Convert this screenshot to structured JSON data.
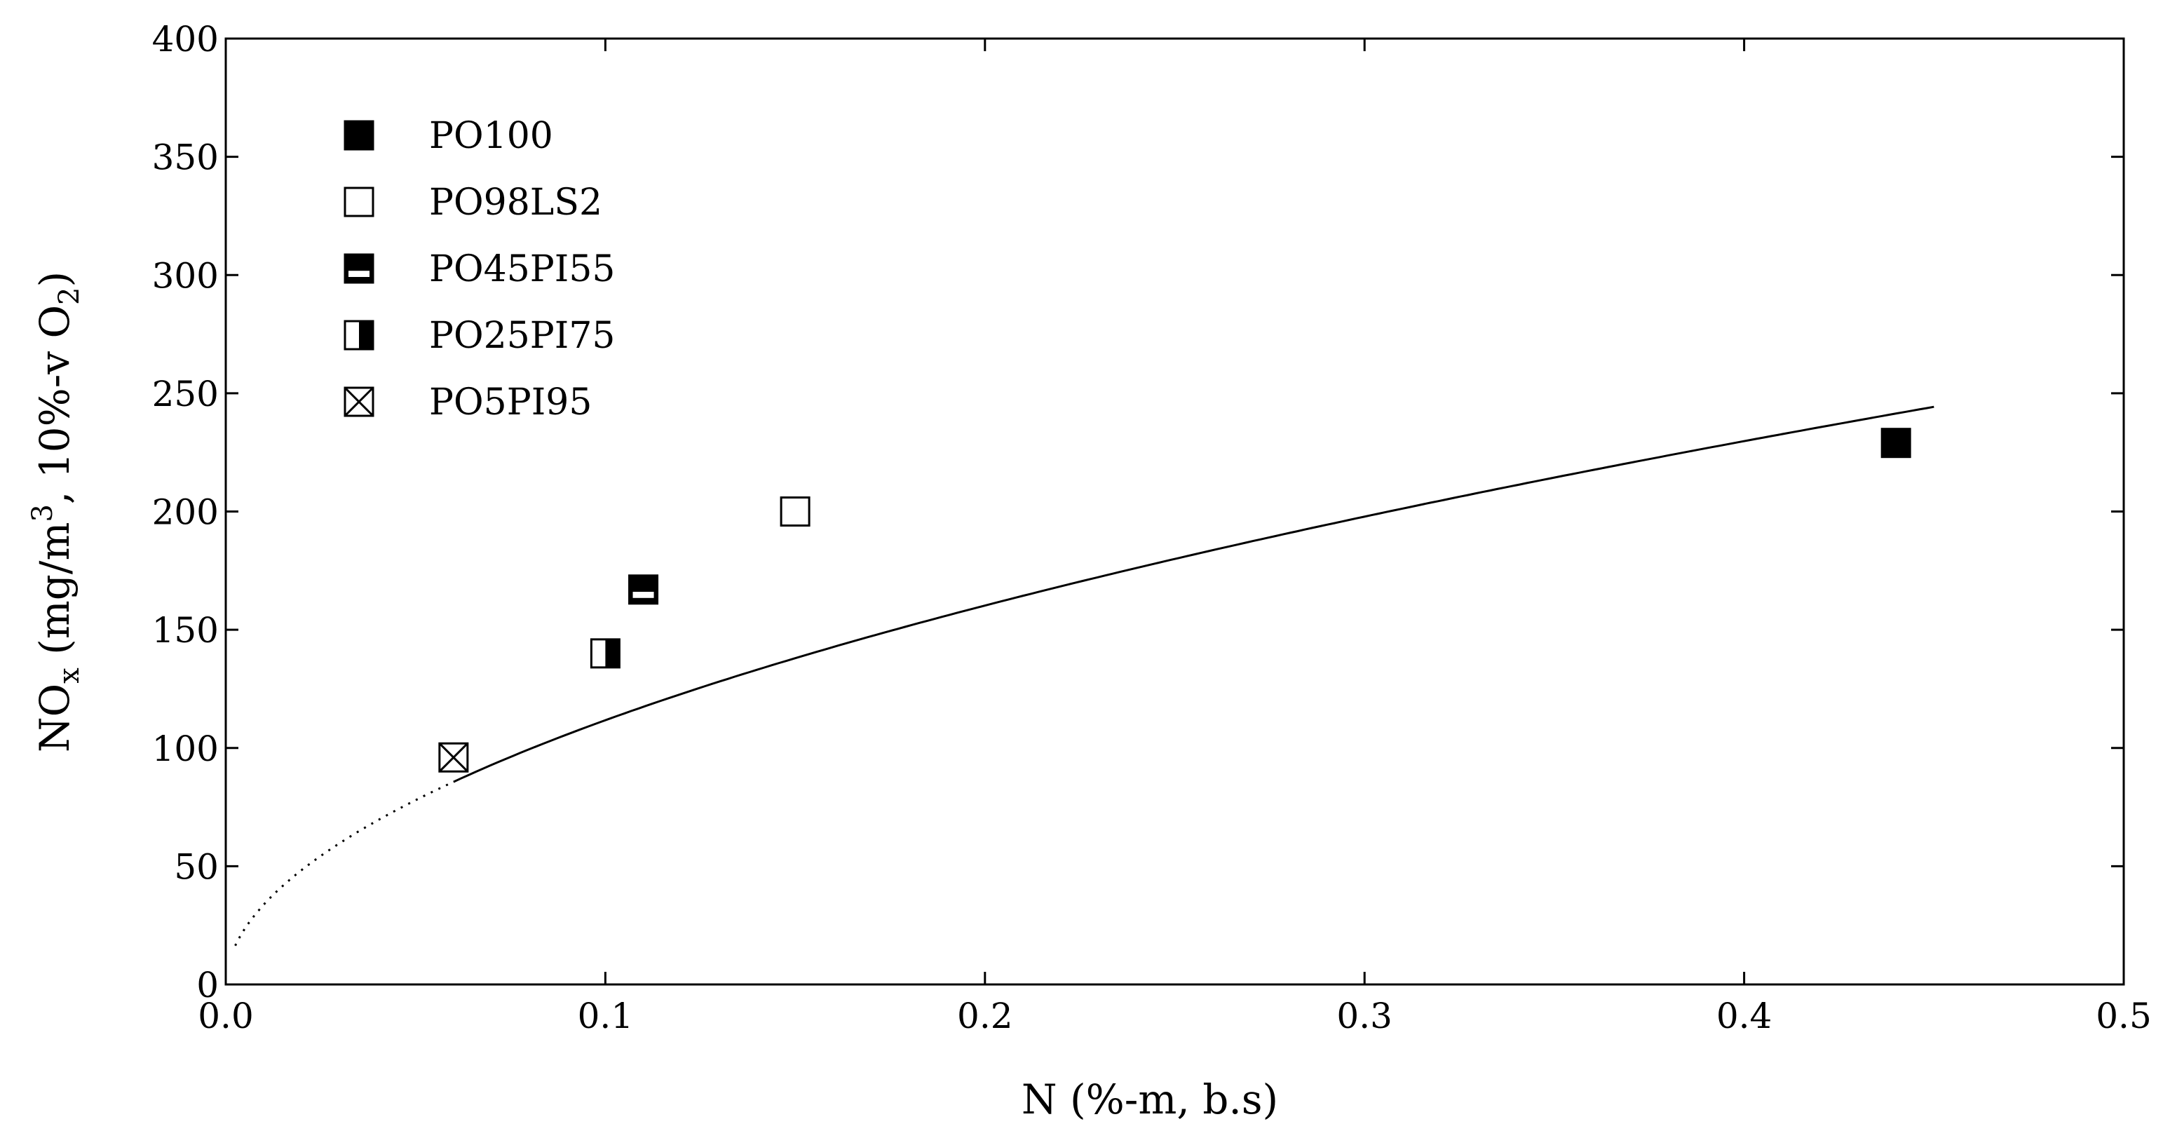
{
  "chart_data": {
    "type": "scatter",
    "title": "",
    "xlabel": "N (%-m, b.s)",
    "ylabel": {
      "main": "NO",
      "sub1": "x",
      "unit_open": " (mg/m",
      "sup": "3",
      "unit_mid": ", 10%-v O",
      "sub2": "2",
      "unit_close": ")"
    },
    "xlim": [
      0.0,
      0.5
    ],
    "ylim": [
      0,
      400
    ],
    "xticks": [
      0.0,
      0.1,
      0.2,
      0.3,
      0.4,
      0.5
    ],
    "xtick_labels": [
      "0.0",
      "0.1",
      "0.2",
      "0.3",
      "0.4",
      "0.5"
    ],
    "yticks": [
      0,
      50,
      100,
      150,
      200,
      250,
      300,
      350,
      400
    ],
    "ytick_labels": [
      "0",
      "50",
      "100",
      "150",
      "200",
      "250",
      "300",
      "350",
      "400"
    ],
    "grid": false,
    "legend_position": "top-left",
    "series": [
      {
        "name": "PO100",
        "marker": "filled-square",
        "points": [
          [
            0.44,
            229
          ]
        ]
      },
      {
        "name": "PO98LS2",
        "marker": "open-square",
        "points": [
          [
            0.15,
            200
          ]
        ]
      },
      {
        "name": "PO45PI55",
        "marker": "bottom-half-open-square",
        "points": [
          [
            0.11,
            167
          ]
        ]
      },
      {
        "name": "PO25PI75",
        "marker": "right-half-filled-square",
        "points": [
          [
            0.1,
            140
          ]
        ]
      },
      {
        "name": "PO5PI95",
        "marker": "crossed-square",
        "points": [
          [
            0.06,
            96
          ]
        ]
      }
    ],
    "trendline": {
      "type": "power",
      "equation": "y = 370 * x^0.52",
      "coefficient": 370,
      "exponent": 0.52,
      "solid_range": [
        0.06,
        0.45
      ],
      "dotted_range": [
        0.0025,
        0.06
      ]
    }
  }
}
